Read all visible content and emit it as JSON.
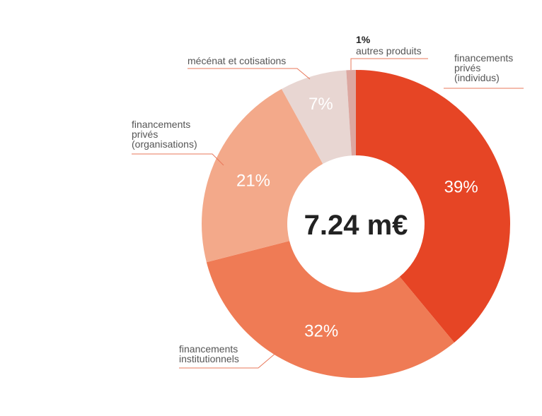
{
  "chart_data": {
    "type": "donut",
    "center_label": "7.24 m€",
    "categories": [
      [
        "financements",
        "privés",
        "(individus)"
      ],
      [
        "financements",
        "institutionnels"
      ],
      [
        "financements",
        "privés",
        "(organisations)"
      ],
      [
        "mécénat et cotisations"
      ],
      [
        "autres produits"
      ]
    ],
    "values": [
      39,
      32,
      21,
      7,
      1
    ],
    "value_labels": [
      "39%",
      "32%",
      "21%",
      "7%",
      "1%"
    ],
    "colors": [
      "#e64525",
      "#ef7b55",
      "#f3a98a",
      "#e8d6d2",
      "#dca7a0"
    ]
  }
}
